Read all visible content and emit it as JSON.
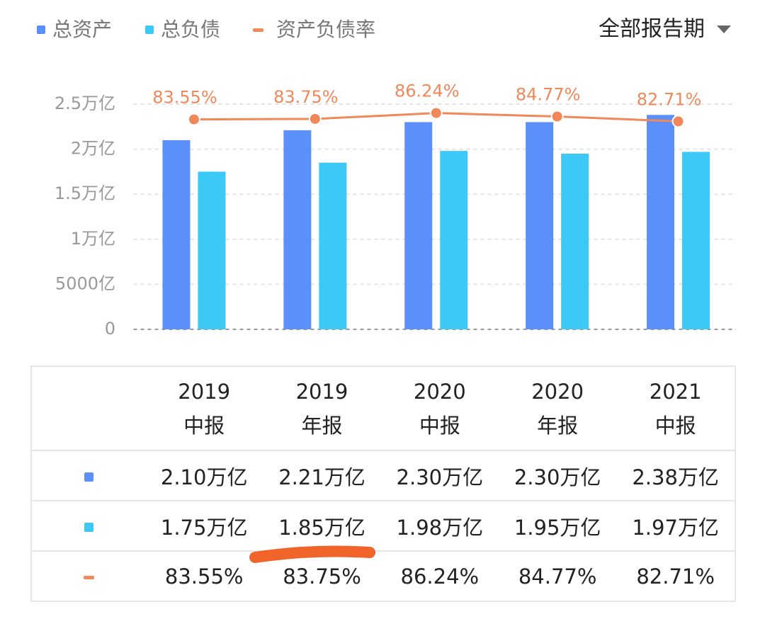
{
  "chart_data": {
    "type": "bar-line",
    "period_filter": "全部报告期",
    "categories": [
      "2019\n中报",
      "2019\n年报",
      "2020\n中报",
      "2020\n年报",
      "2021\n中报"
    ],
    "series": [
      {
        "name": "总资产",
        "color": "#5b8ff9",
        "values": [
          21000,
          22100,
          23000,
          23000,
          23800
        ],
        "value_labels": [
          "2.10万亿",
          "2.21万亿",
          "2.30万亿",
          "2.30万亿",
          "2.38万亿"
        ]
      },
      {
        "name": "总负债",
        "color": "#3dc9f5",
        "values": [
          17500,
          18500,
          19800,
          19500,
          19700
        ],
        "value_labels": [
          "1.75万亿",
          "1.85万亿",
          "1.98万亿",
          "1.95万亿",
          "1.97万亿"
        ]
      },
      {
        "name": "资产负债率",
        "color": "#f0885a",
        "axis": "y2",
        "values": [
          83.55,
          83.75,
          86.24,
          84.77,
          82.71
        ],
        "value_labels": [
          "83.55%",
          "83.75%",
          "86.24%",
          "84.77%",
          "82.71%"
        ]
      }
    ],
    "ylim": [
      0,
      25000
    ],
    "yticks": [
      0,
      {
        "value": 5000,
        "label": "5000亿"
      },
      {
        "value": 10000,
        "label": "1万亿"
      },
      {
        "value": 15000,
        "label": "1.5万亿"
      },
      {
        "value": 20000,
        "label": "2万亿"
      },
      {
        "value": 25000,
        "label": "2.5万亿"
      }
    ],
    "y2lim": [
      -5,
      90
    ],
    "grid": true,
    "legend": "top-left"
  }
}
